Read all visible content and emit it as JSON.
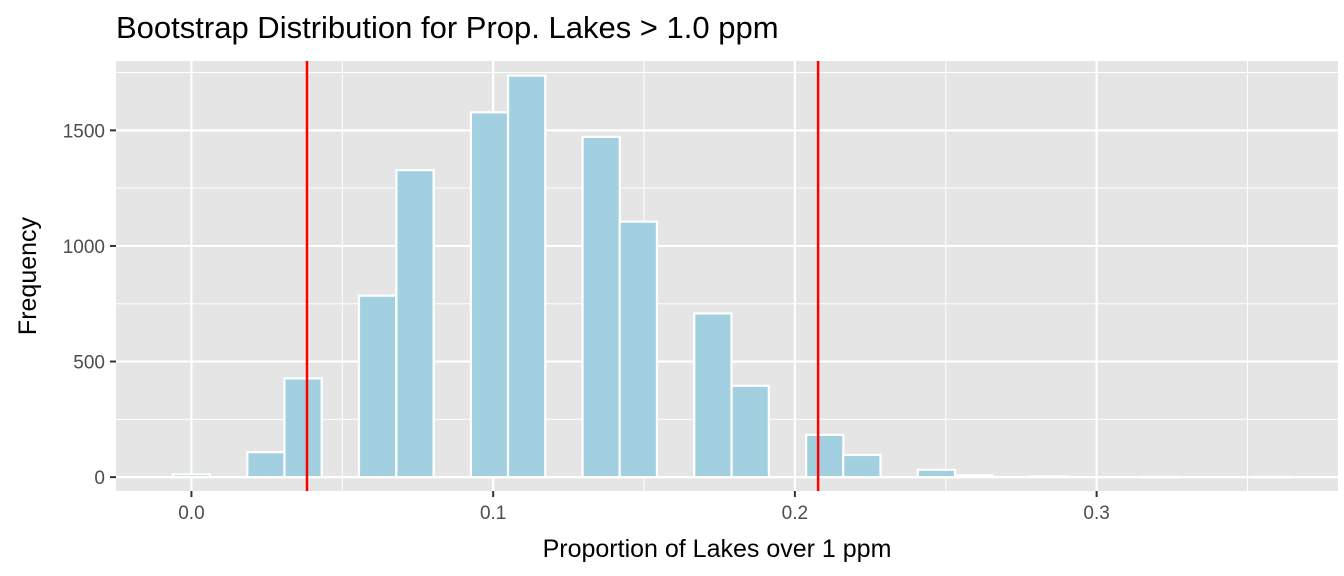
{
  "chart_data": {
    "type": "bar",
    "title": "Bootstrap Distribution for Prop. Lakes > 1.0 ppm",
    "xlabel": "Proportion of Lakes over 1 ppm",
    "ylabel": "Frequency",
    "xlim": [
      -0.025,
      0.38
    ],
    "ylim": [
      -60,
      1800
    ],
    "xticks": [
      {
        "value": 0.0,
        "label": "0.0"
      },
      {
        "value": 0.1,
        "label": "0.1"
      },
      {
        "value": 0.2,
        "label": "0.2"
      },
      {
        "value": 0.3,
        "label": "0.3"
      }
    ],
    "yticks": [
      {
        "value": 0,
        "label": "0"
      },
      {
        "value": 500,
        "label": "500"
      },
      {
        "value": 1000,
        "label": "1000"
      },
      {
        "value": 1500,
        "label": "1500"
      }
    ],
    "bin_width": 0.01235,
    "bins": [
      {
        "x": 0.0,
        "count": 12
      },
      {
        "x": 0.0247,
        "count": 108
      },
      {
        "x": 0.037,
        "count": 427
      },
      {
        "x": 0.0617,
        "count": 785
      },
      {
        "x": 0.0741,
        "count": 1328
      },
      {
        "x": 0.0988,
        "count": 1578
      },
      {
        "x": 0.1111,
        "count": 1737
      },
      {
        "x": 0.1358,
        "count": 1472
      },
      {
        "x": 0.1481,
        "count": 1105
      },
      {
        "x": 0.1728,
        "count": 708
      },
      {
        "x": 0.1852,
        "count": 395
      },
      {
        "x": 0.2099,
        "count": 183
      },
      {
        "x": 0.2222,
        "count": 96
      },
      {
        "x": 0.2469,
        "count": 32
      },
      {
        "x": 0.2593,
        "count": 8
      },
      {
        "x": 0.284,
        "count": 3
      },
      {
        "x": 0.321,
        "count": 1
      },
      {
        "x": 0.358,
        "count": 1
      }
    ],
    "reference_lines": [
      {
        "x": 0.0383,
        "color": "#ff0000"
      },
      {
        "x": 0.2077,
        "color": "#ff0000"
      }
    ],
    "grid": true,
    "colors": {
      "bar_fill": "#a3d0e1",
      "bar_outline": "#ffffff",
      "panel_background": "#e5e5e5",
      "gridline": "#ffffff"
    }
  }
}
